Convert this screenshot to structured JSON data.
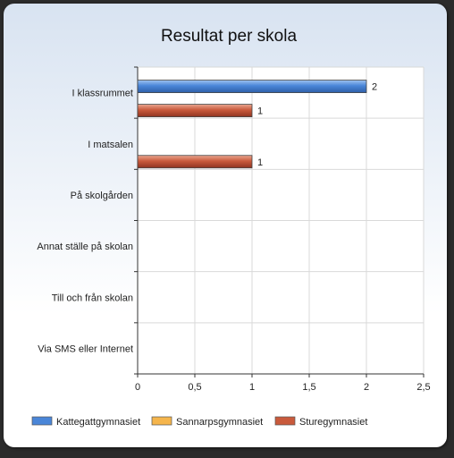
{
  "chart_data": {
    "type": "bar",
    "orientation": "horizontal",
    "title": "Resultat per skola",
    "categories": [
      "I klassrummet",
      "I matsalen",
      "På skolgården",
      "Annat ställe på skolan",
      "Till och från skolan",
      "Via SMS eller Internet"
    ],
    "series": [
      {
        "name": "Kattegattgymnasiet",
        "color": "#4a86d8",
        "values": [
          2,
          0,
          0,
          0,
          0,
          0
        ]
      },
      {
        "name": "Sannarpsgymnasiet",
        "color": "#f5b54c",
        "values": [
          0,
          0,
          0,
          0,
          0,
          0
        ]
      },
      {
        "name": "Sturegymnasiet",
        "color": "#c95a3c",
        "values": [
          1,
          1,
          0,
          0,
          0,
          0
        ]
      }
    ],
    "xlim": [
      0,
      2.5
    ],
    "xticks": [
      "0",
      "0,5",
      "1",
      "1,5",
      "2",
      "2,5"
    ],
    "grid": true,
    "legend_position": "bottom"
  }
}
